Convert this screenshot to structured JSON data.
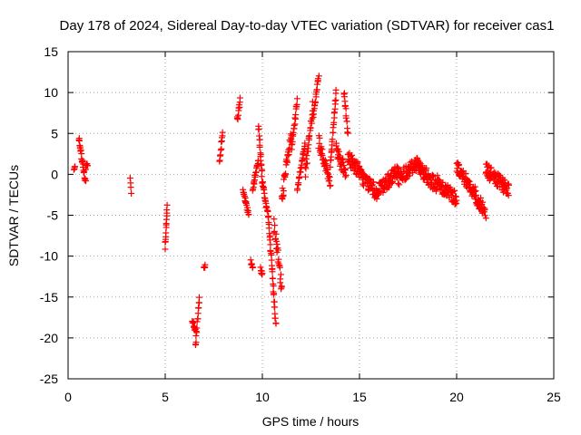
{
  "chart_data": {
    "type": "scatter",
    "title": "Day 178 of 2024, Sidereal Day-to-day VTEC variation (SDTVAR) for receiver cas1",
    "xlabel": "GPS time / hours",
    "ylabel": "SDTVAR / TECUs",
    "xlim": [
      0,
      25
    ],
    "ylim": [
      -25,
      15
    ],
    "x_ticks": [
      "0",
      "5",
      "10",
      "15",
      "20",
      "25"
    ],
    "y_ticks": [
      "15",
      "10",
      "5",
      "0",
      "-5",
      "-10",
      "-15",
      "-20",
      "-25"
    ],
    "grid": true,
    "marker": "+",
    "color": "#ff0000",
    "segments": [
      {
        "x": [
          0.3,
          0.35
        ],
        "y": [
          0.7,
          0.9
        ]
      },
      {
        "x": [
          0.55,
          0.9
        ],
        "y": [
          4.5,
          -1.0
        ]
      },
      {
        "x": [
          0.9,
          1.0
        ],
        "y": [
          0.8,
          1.4
        ]
      },
      {
        "x": [
          3.2,
          3.25
        ],
        "y": [
          -0.8,
          -2.0
        ]
      },
      {
        "x": [
          5.0,
          5.1
        ],
        "y": [
          -9.0,
          -4.0
        ]
      },
      {
        "x": [
          6.4,
          6.55
        ],
        "y": [
          -18.0,
          -19.0
        ]
      },
      {
        "x": [
          6.55,
          6.75
        ],
        "y": [
          -21.0,
          -15.0
        ]
      },
      {
        "x": [
          7.0,
          7.05
        ],
        "y": [
          -11.3,
          -11.4
        ]
      },
      {
        "x": [
          7.8,
          7.95
        ],
        "y": [
          1.5,
          5.3
        ]
      },
      {
        "x": [
          8.7,
          8.85
        ],
        "y": [
          6.5,
          9.0
        ]
      },
      {
        "x": [
          9.0,
          9.3
        ],
        "y": [
          -2.0,
          -5.0
        ]
      },
      {
        "x": [
          9.4,
          9.5
        ],
        "y": [
          -10.5,
          -11.5
        ]
      },
      {
        "x": [
          9.5,
          9.8
        ],
        "y": [
          -2.0,
          2.0
        ]
      },
      {
        "x": [
          9.8,
          10.0
        ],
        "y": [
          6.0,
          -1.0
        ]
      },
      {
        "x": [
          9.9,
          10.0
        ],
        "y": [
          -11.5,
          -12.0
        ]
      },
      {
        "x": [
          10.0,
          10.3
        ],
        "y": [
          -1.0,
          -5.0
        ]
      },
      {
        "x": [
          10.3,
          10.7
        ],
        "y": [
          -5.0,
          -18.5
        ]
      },
      {
        "x": [
          10.6,
          11.0
        ],
        "y": [
          -6.0,
          -14.0
        ]
      },
      {
        "x": [
          11.0,
          11.5
        ],
        "y": [
          -3.0,
          5.0
        ]
      },
      {
        "x": [
          11.5,
          11.8
        ],
        "y": [
          3.0,
          9.0
        ]
      },
      {
        "x": [
          11.8,
          12.2
        ],
        "y": [
          -2.0,
          4.0
        ]
      },
      {
        "x": [
          12.2,
          12.6
        ],
        "y": [
          0.0,
          8.0
        ]
      },
      {
        "x": [
          12.6,
          12.9
        ],
        "y": [
          7.0,
          12.0
        ]
      },
      {
        "x": [
          12.9,
          13.5
        ],
        "y": [
          4.0,
          -1.0
        ]
      },
      {
        "x": [
          13.5,
          13.8
        ],
        "y": [
          1.0,
          10.0
        ]
      },
      {
        "x": [
          13.8,
          14.3
        ],
        "y": [
          3.0,
          0.0
        ]
      },
      {
        "x": [
          14.2,
          14.4
        ],
        "y": [
          10.0,
          5.0
        ]
      },
      {
        "x": [
          14.4,
          15.0
        ],
        "y": [
          2.0,
          0.5
        ]
      },
      {
        "x": [
          15.0,
          16.0
        ],
        "y": [
          0.0,
          -2.5
        ]
      },
      {
        "x": [
          16.0,
          17.0
        ],
        "y": [
          -2.0,
          0.5
        ]
      },
      {
        "x": [
          17.0,
          18.0
        ],
        "y": [
          -0.5,
          1.5
        ]
      },
      {
        "x": [
          18.0,
          19.0
        ],
        "y": [
          1.0,
          -1.5
        ]
      },
      {
        "x": [
          19.0,
          20.0
        ],
        "y": [
          -1.0,
          -3.0
        ]
      },
      {
        "x": [
          20.0,
          21.0
        ],
        "y": [
          1.0,
          -2.5
        ]
      },
      {
        "x": [
          21.0,
          21.5
        ],
        "y": [
          -3.0,
          -4.5
        ]
      },
      {
        "x": [
          21.5,
          22.7
        ],
        "y": [
          0.5,
          -2.0
        ]
      }
    ]
  }
}
